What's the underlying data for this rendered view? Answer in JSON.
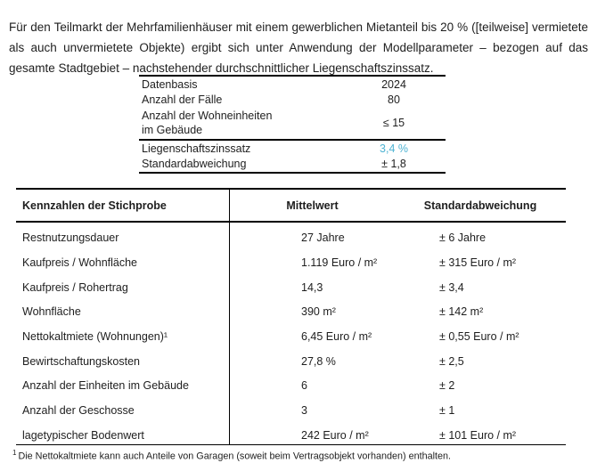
{
  "colors": {
    "accent": "#4eb3d3"
  },
  "intro": {
    "text": "Für den Teilmarkt der Mehrfamilienhäuser mit einem gewerblichen Mietanteil bis 20 % ([teilweise] vermietete als auch unvermietete Objekte) ergibt sich unter Anwendung der Modellparameter – bezogen auf das gesamte Stadtgebiet – nachstehender durchschnittlicher Liegenschaftszinssatz."
  },
  "summary_table": {
    "rows": [
      {
        "label": "Datenbasis",
        "value": "2024"
      },
      {
        "label": "Anzahl der Fälle",
        "value": "80"
      },
      {
        "label": "Anzahl der Wohneinheiten\nim Gebäude",
        "value": "≤ 15"
      },
      {
        "label": "Liegenschaftszinssatz",
        "value": "3,4 %"
      },
      {
        "label": "Standardabweichung",
        "value": "± 1,8"
      }
    ]
  },
  "stats_table": {
    "headers": [
      "Kennzahlen der Stichprobe",
      "Mittelwert",
      "Standardabweichung"
    ],
    "rows": [
      [
        "Restnutzungsdauer",
        "27 Jahre",
        "± 6 Jahre"
      ],
      [
        "Kaufpreis / Wohnfläche",
        "1.119 Euro / m²",
        "± 315 Euro / m²"
      ],
      [
        "Kaufpreis / Rohertrag",
        "14,3",
        "± 3,4"
      ],
      [
        "Wohnfläche",
        "390 m²",
        "± 142 m²"
      ],
      [
        "Nettokaltmiete (Wohnungen)¹",
        "6,45 Euro / m²",
        "± 0,55 Euro / m²"
      ],
      [
        "Bewirtschaftungskosten",
        "27,8 %",
        "± 2,5"
      ],
      [
        "Anzahl der Einheiten im Gebäude",
        "6",
        "± 2"
      ],
      [
        "Anzahl der Geschosse",
        "3",
        "± 1"
      ],
      [
        "lagetypischer Bodenwert",
        "242 Euro / m²",
        "± 101 Euro / m²"
      ]
    ]
  },
  "footnote": {
    "marker": "1",
    "text": "Die Nettokaltmiete kann auch Anteile von Garagen (soweit beim Vertragsobjekt vorhanden) enthalten."
  }
}
